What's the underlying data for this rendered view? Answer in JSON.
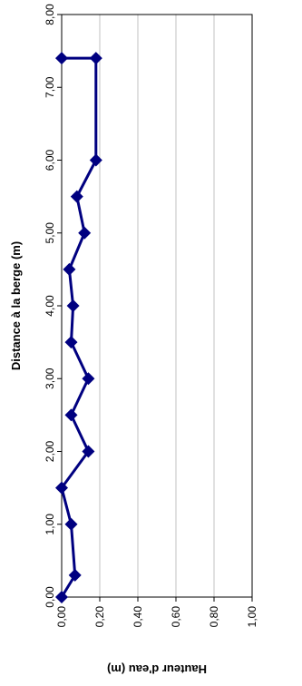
{
  "chart_data": {
    "type": "line",
    "orientation": "rotated-90",
    "x": [
      0.0,
      0.3,
      1.0,
      1.5,
      2.0,
      2.5,
      3.0,
      3.5,
      4.0,
      4.5,
      5.0,
      5.5,
      6.0,
      7.4,
      7.4
    ],
    "y": [
      0.0,
      0.07,
      0.05,
      0.0,
      0.14,
      0.05,
      0.14,
      0.05,
      0.06,
      0.04,
      0.12,
      0.08,
      0.18,
      0.18,
      0.0
    ],
    "xlabel": "Distance à la berge (m)",
    "ylabel": "Hauteur d'eau (m)",
    "xlim": [
      0,
      8
    ],
    "ylim": [
      0,
      1
    ],
    "x_ticks": [
      "0,00",
      "1,00",
      "2,00",
      "3,00",
      "4,00",
      "5,00",
      "6,00",
      "7,00",
      "8,00"
    ],
    "y_ticks": [
      "0,00",
      "0,20",
      "0,40",
      "0,60",
      "0,80",
      "1,00"
    ],
    "grid": true,
    "legend": "none",
    "series_color": "#000080",
    "marker": "diamond"
  }
}
